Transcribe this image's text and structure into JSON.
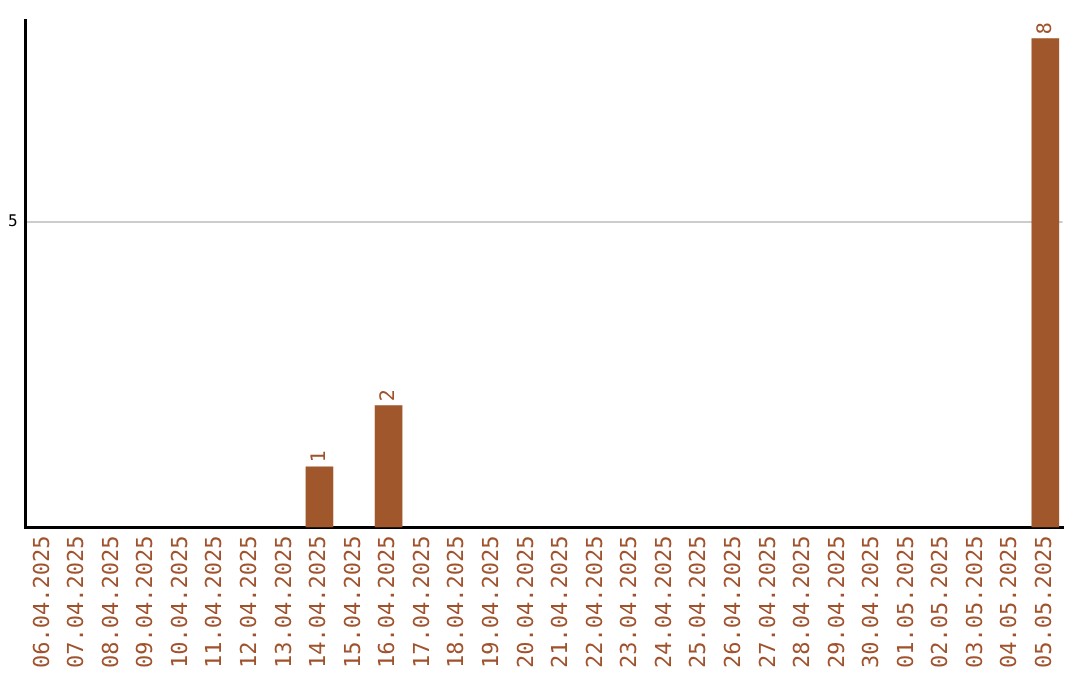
{
  "chart_data": {
    "type": "bar",
    "categories": [
      "06.04.2025",
      "07.04.2025",
      "08.04.2025",
      "09.04.2025",
      "10.04.2025",
      "11.04.2025",
      "12.04.2025",
      "13.04.2025",
      "14.04.2025",
      "15.04.2025",
      "16.04.2025",
      "17.04.2025",
      "18.04.2025",
      "19.04.2025",
      "20.04.2025",
      "21.04.2025",
      "22.04.2025",
      "23.04.2025",
      "24.04.2025",
      "25.04.2025",
      "26.04.2025",
      "27.04.2025",
      "28.04.2025",
      "29.04.2025",
      "30.04.2025",
      "01.05.2025",
      "02.05.2025",
      "03.05.2025",
      "04.05.2025",
      "05.05.2025"
    ],
    "values": [
      0,
      0,
      0,
      0,
      0,
      0,
      0,
      0,
      1,
      0,
      2,
      0,
      0,
      0,
      0,
      0,
      0,
      0,
      0,
      0,
      0,
      0,
      0,
      0,
      0,
      0,
      0,
      0,
      0,
      8
    ],
    "value_labels": [
      null,
      null,
      null,
      null,
      null,
      null,
      null,
      null,
      "1",
      null,
      "2",
      null,
      null,
      null,
      null,
      null,
      null,
      null,
      null,
      null,
      null,
      null,
      null,
      null,
      null,
      null,
      null,
      null,
      null,
      "8"
    ],
    "color": "#a0572b",
    "ylim": [
      0,
      8.3
    ],
    "yticks": [
      5
    ],
    "grid": "y",
    "legend": false
  }
}
